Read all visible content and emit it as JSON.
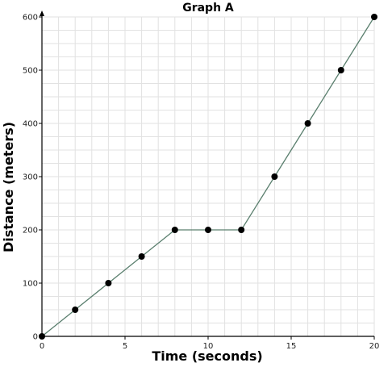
{
  "chart_data": {
    "type": "line",
    "title": "Graph A",
    "xlabel": "Time (seconds)",
    "ylabel": "Distance (meters)",
    "xlim": [
      0,
      20
    ],
    "ylim": [
      0,
      600
    ],
    "x_ticks": [
      0,
      5,
      10,
      15,
      20
    ],
    "y_ticks": [
      0,
      100,
      200,
      300,
      400,
      500,
      600
    ],
    "grid": true,
    "series": [
      {
        "x": [
          0,
          2,
          4,
          6,
          8,
          10,
          12,
          14,
          16,
          18,
          20
        ],
        "y": [
          0,
          50,
          100,
          150,
          200,
          200,
          200,
          300,
          400,
          500,
          600
        ]
      }
    ],
    "colors": {
      "line": "#5a7f6e",
      "point": "#000000",
      "grid": "#e2e2e2",
      "axis": "#000000"
    }
  }
}
